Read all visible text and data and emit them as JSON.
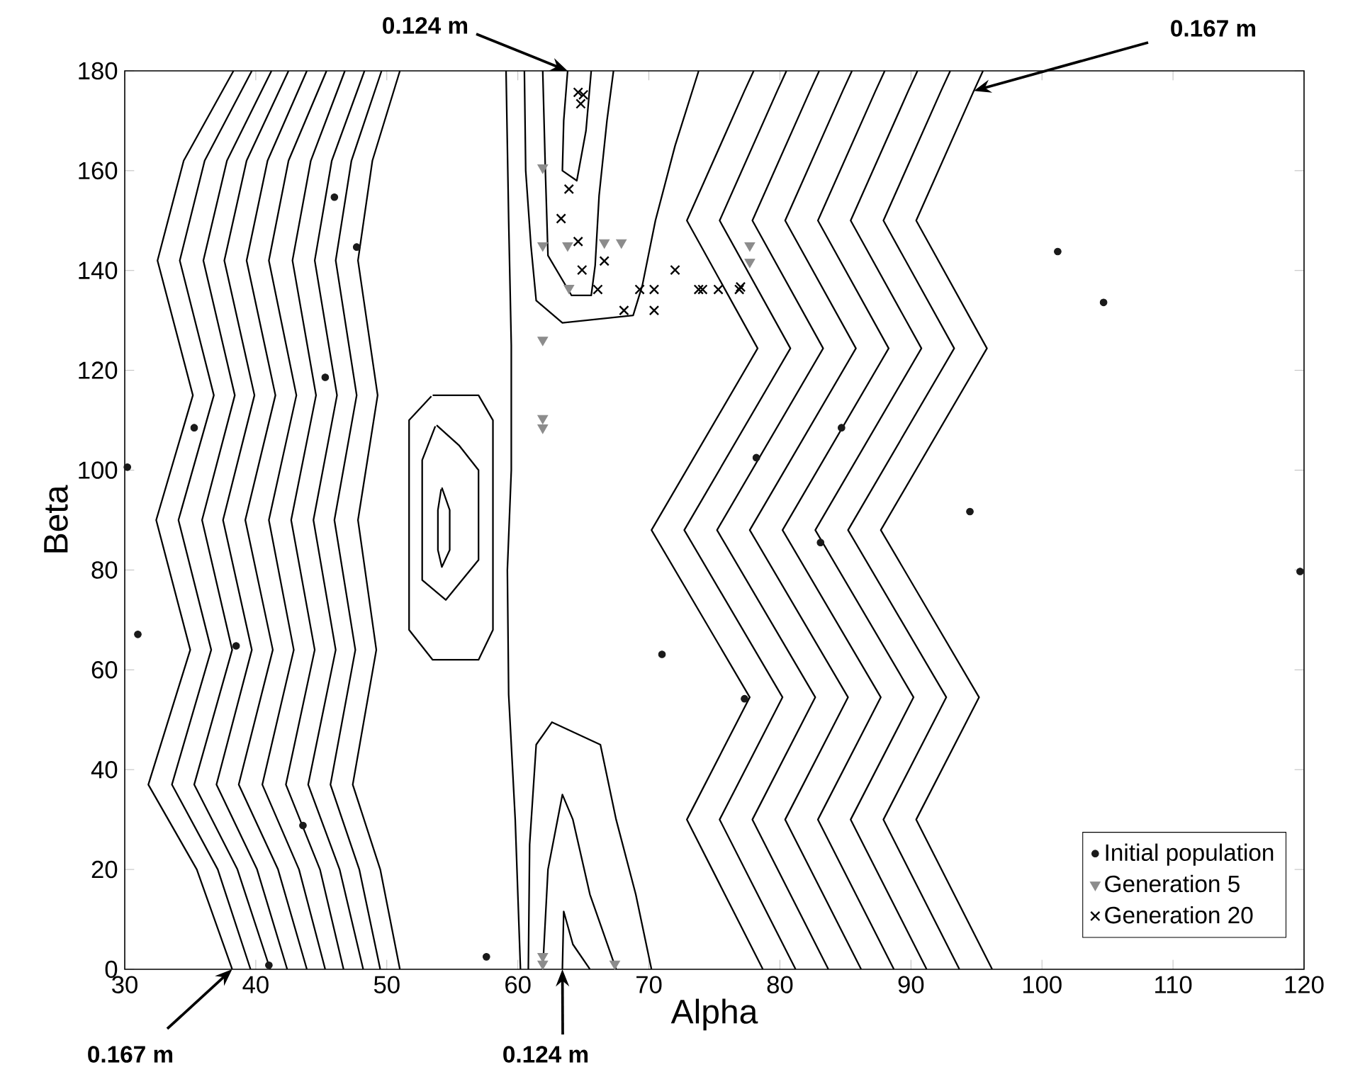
{
  "chart_data": {
    "type": "scatter",
    "xlabel": "Alpha",
    "ylabel": "Beta",
    "xlim": [
      30,
      120
    ],
    "ylim": [
      0,
      180
    ],
    "xticks": [
      30,
      40,
      50,
      60,
      70,
      80,
      90,
      100,
      110,
      120
    ],
    "yticks": [
      0,
      20,
      40,
      60,
      80,
      100,
      120,
      140,
      160,
      180
    ],
    "legend": "bottom right",
    "annotations": [
      {
        "text": "0.124 m",
        "x": 63.8,
        "y": 180
      },
      {
        "text": "0.167 m",
        "x": 94.8,
        "y": 176
      },
      {
        "text": "0.167 m",
        "x": 38.2,
        "y": 0
      },
      {
        "text": "0.124 m",
        "x": 63.4,
        "y": 0
      }
    ],
    "series": [
      {
        "type": "line",
        "color": "#000000",
        "x": [
          38.2,
          35.5,
          31.8,
          35.0,
          32.4,
          35.2,
          32.5,
          34.5,
          38.3
        ],
        "values": [
          0,
          20,
          37,
          64,
          90,
          115,
          142,
          162,
          180
        ]
      },
      {
        "type": "line",
        "color": "#000000",
        "x": [
          39.6,
          37.1,
          33.6,
          36.6,
          34.1,
          36.8,
          34.2,
          36.1,
          39.7
        ],
        "values": [
          0,
          20,
          37,
          64,
          90,
          115,
          142,
          162,
          180
        ]
      },
      {
        "type": "line",
        "color": "#000000",
        "x": [
          41.1,
          38.6,
          35.3,
          38.2,
          35.9,
          38.4,
          36.0,
          37.8,
          41.2
        ],
        "values": [
          0,
          20,
          37,
          64,
          90,
          115,
          142,
          162,
          180
        ]
      },
      {
        "type": "line",
        "color": "#000000",
        "x": [
          42.4,
          40.1,
          37.0,
          39.7,
          37.5,
          39.9,
          37.6,
          39.3,
          42.5
        ],
        "values": [
          0,
          20,
          37,
          64,
          90,
          115,
          142,
          162,
          180
        ]
      },
      {
        "type": "line",
        "color": "#000000",
        "x": [
          43.9,
          41.7,
          38.7,
          41.3,
          39.2,
          41.5,
          39.3,
          40.9,
          43.9
        ],
        "values": [
          0,
          20,
          37,
          64,
          90,
          115,
          142,
          162,
          180
        ]
      },
      {
        "type": "line",
        "color": "#000000",
        "x": [
          45.3,
          43.3,
          40.5,
          42.9,
          41.0,
          43.1,
          41.0,
          42.5,
          45.4
        ],
        "values": [
          0,
          20,
          37,
          64,
          90,
          115,
          142,
          162,
          180
        ]
      },
      {
        "type": "line",
        "color": "#000000",
        "x": [
          46.7,
          44.9,
          42.3,
          44.5,
          42.7,
          44.6,
          42.8,
          44.2,
          46.8
        ],
        "values": [
          0,
          20,
          37,
          64,
          90,
          115,
          142,
          162,
          180
        ]
      },
      {
        "type": "line",
        "color": "#000000",
        "x": [
          48.2,
          46.4,
          44.0,
          46.1,
          44.4,
          46.2,
          44.5,
          45.8,
          48.3
        ],
        "values": [
          0,
          20,
          37,
          64,
          90,
          115,
          142,
          162,
          180
        ]
      },
      {
        "type": "line",
        "color": "#000000",
        "x": [
          49.5,
          47.9,
          45.7,
          47.6,
          46.0,
          47.7,
          46.1,
          47.3,
          49.6
        ],
        "values": [
          0,
          20,
          37,
          64,
          90,
          115,
          142,
          162,
          180
        ]
      },
      {
        "type": "line",
        "color": "#000000",
        "x": [
          51.0,
          49.5,
          47.4,
          49.2,
          47.8,
          49.3,
          47.8,
          48.9,
          51.0
        ],
        "values": [
          0,
          20,
          37,
          64,
          90,
          115,
          142,
          162,
          180
        ]
      },
      {
        "type": "line",
        "color": "#000000",
        "x": [
          53.5,
          57.0,
          58.1,
          58.1,
          57.0,
          53.5,
          51.7,
          51.7,
          53.4
        ],
        "values": [
          115,
          115,
          110,
          68,
          62,
          62,
          68,
          110,
          114.8
        ]
      },
      {
        "type": "line",
        "color": "#000000",
        "x": [
          53.8,
          55.5,
          57.0,
          57.0,
          54.5,
          52.7,
          52.7,
          53.7
        ],
        "values": [
          109,
          105,
          100,
          82,
          74,
          78,
          102,
          108.8
        ]
      },
      {
        "type": "line",
        "color": "#000000",
        "x": [
          54.2,
          54.8,
          54.8,
          54.2,
          53.9,
          53.9,
          54.15
        ],
        "values": [
          96.5,
          92,
          84,
          80.6,
          84,
          92,
          96.2
        ]
      },
      {
        "type": "line",
        "color": "#000000",
        "x": [
          59.1,
          59.3,
          59.5,
          59.5,
          59.2,
          59.3,
          59.8,
          60.2
        ],
        "values": [
          180,
          150,
          125,
          100,
          80,
          55,
          30,
          0
        ]
      },
      {
        "type": "line",
        "color": "#000000",
        "x": [
          60.5,
          60.6,
          61.0,
          61.4,
          63.4,
          68.8,
          69.5,
          70.5,
          72.0,
          73.8
        ],
        "values": [
          180,
          160,
          145,
          134,
          129.5,
          131,
          137,
          150,
          165,
          180
        ]
      },
      {
        "type": "line",
        "color": "#000000",
        "x": [
          61.9,
          62.1,
          62.3,
          64.1,
          65.6,
          65.9,
          66.2,
          66.8,
          67.3
        ],
        "values": [
          180,
          160,
          143,
          135,
          135,
          141,
          155,
          170,
          180
        ]
      },
      {
        "type": "line",
        "color": "#000000",
        "x": [
          63.8,
          63.5,
          63.4,
          64.5,
          65.2,
          65.6
        ],
        "values": [
          180,
          170,
          160,
          158,
          168,
          180
        ]
      },
      {
        "type": "line",
        "color": "#000000",
        "x": [
          60.8,
          60.9,
          61.4,
          62.6,
          66.3,
          67.5,
          69.0,
          70.2
        ],
        "values": [
          0,
          25,
          45,
          49.5,
          45,
          30,
          15,
          0
        ]
      },
      {
        "type": "line",
        "color": "#000000",
        "x": [
          61.9,
          62.3,
          63.4,
          64.2,
          65.5,
          67.5
        ],
        "values": [
          0,
          20,
          35,
          30,
          15,
          0
        ]
      },
      {
        "type": "line",
        "color": "#000000",
        "x": [
          63.4,
          63.5,
          64.2,
          65.5
        ],
        "values": [
          0,
          11.6,
          5,
          0
        ]
      },
      {
        "type": "line",
        "color": "#000000",
        "x": [
          96.2,
          90.4,
          95.2,
          87.7,
          95.8,
          90.4,
          94.8,
          95.5
        ],
        "values": [
          0,
          30,
          54.5,
          88,
          124.4,
          150,
          176,
          180
        ]
      },
      {
        "type": "line",
        "color": "#000000",
        "x": [
          93.7,
          87.9,
          92.7,
          85.2,
          93.3,
          87.9,
          92.3,
          93.0
        ],
        "values": [
          0,
          30,
          54.5,
          88,
          124.4,
          150,
          176,
          180
        ]
      },
      {
        "type": "line",
        "color": "#000000",
        "x": [
          91.2,
          85.4,
          90.2,
          82.7,
          90.8,
          85.4,
          89.8,
          90.5
        ],
        "values": [
          0,
          30,
          54.5,
          88,
          124.4,
          150,
          176,
          180
        ]
      },
      {
        "type": "line",
        "color": "#000000",
        "x": [
          88.7,
          82.9,
          87.7,
          80.2,
          88.3,
          82.9,
          87.3,
          88.0
        ],
        "values": [
          0,
          30,
          54.5,
          88,
          124.4,
          150,
          176,
          180
        ]
      },
      {
        "type": "line",
        "color": "#000000",
        "x": [
          86.2,
          80.4,
          85.2,
          77.7,
          85.8,
          80.4,
          84.8,
          85.5
        ],
        "values": [
          0,
          30,
          54.5,
          88,
          124.4,
          150,
          176,
          180
        ]
      },
      {
        "type": "line",
        "color": "#000000",
        "x": [
          83.7,
          77.9,
          82.7,
          75.2,
          83.3,
          77.9,
          82.3,
          83.0
        ],
        "values": [
          0,
          30,
          54.5,
          88,
          124.4,
          150,
          176,
          180
        ]
      },
      {
        "type": "line",
        "color": "#000000",
        "x": [
          81.2,
          75.4,
          80.2,
          72.7,
          80.8,
          75.4,
          79.8,
          80.5
        ],
        "values": [
          0,
          30,
          54.5,
          88,
          124.4,
          150,
          176,
          180
        ]
      },
      {
        "type": "line",
        "color": "#000000",
        "x": [
          78.7,
          72.9,
          77.7,
          70.2,
          78.3,
          72.9,
          77.3,
          78.0
        ],
        "values": [
          0,
          30,
          54.5,
          88,
          124.4,
          150,
          176,
          180
        ]
      },
      {
        "name": "Initial population",
        "marker": "circle",
        "color": "#1a1a1a",
        "x": [
          46.0,
          47.7,
          45.3,
          35.3,
          30.2,
          31.0,
          38.5,
          43.6,
          41.0,
          57.6,
          78.2,
          71.0,
          77.3,
          101.2,
          84.7,
          83.1,
          94.5,
          104.7,
          119.7
        ],
        "values": [
          154.7,
          144.7,
          118.6,
          108.5,
          100.6,
          67.1,
          64.8,
          28.8,
          0.8,
          2.5,
          102.5,
          63.1,
          54.2,
          143.8,
          108.5,
          85.5,
          91.7,
          133.6,
          79.7
        ]
      },
      {
        "name": "Generation 5",
        "marker": "triangle",
        "color": "#8c8c8c",
        "x": [
          61.9,
          61.9,
          63.8,
          66.6,
          67.9,
          63.9,
          61.9,
          61.9,
          61.9,
          77.7,
          77.7,
          61.9,
          61.9,
          67.4
        ],
        "values": [
          160.6,
          145.0,
          145.0,
          145.6,
          145.6,
          136.5,
          126.1,
          110.4,
          108.5,
          145.0,
          141.7,
          2.6,
          1.1,
          1.1
        ]
      },
      {
        "name": "Generation 20",
        "marker": "cross",
        "color": "#000000",
        "x": [
          64.6,
          65.0,
          64.8,
          63.9,
          63.3,
          64.6,
          66.6,
          64.9,
          66.1,
          69.3,
          70.4,
          68.1,
          70.4,
          72.0,
          73.8,
          74.1,
          75.3,
          76.9,
          77.0
        ],
        "values": [
          175.7,
          175.2,
          173.4,
          156.3,
          150.4,
          145.8,
          141.9,
          140.1,
          136.2,
          136.2,
          136.2,
          132.0,
          132.0,
          140.1,
          136.2,
          136.2,
          136.2,
          136.2,
          136.7
        ]
      }
    ]
  }
}
